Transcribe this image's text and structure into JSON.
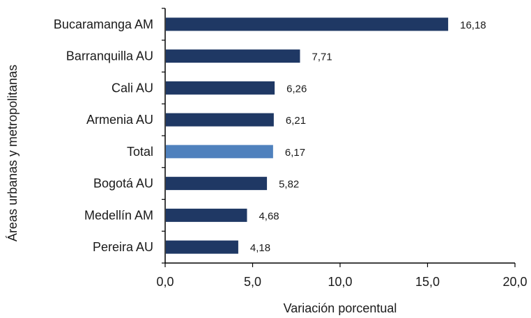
{
  "chart_data": {
    "type": "bar",
    "orientation": "horizontal",
    "title": "",
    "xlabel": "Variación porcentual",
    "ylabel": "Áreas urbanas y metropolitanas",
    "xlim": [
      0,
      20
    ],
    "x_ticks": [
      0,
      5,
      10,
      15,
      20
    ],
    "x_tick_labels": [
      "0,0",
      "5,0",
      "10,0",
      "15,0",
      "20,0"
    ],
    "grid": false,
    "legend": "none",
    "categories": [
      "Bucaramanga AM",
      "Barranquilla AU",
      "Cali AU",
      "Armenia AU",
      "Total",
      "Bogotá AU",
      "Medellín AM",
      "Pereira AU"
    ],
    "values": [
      16.18,
      7.71,
      6.26,
      6.21,
      6.17,
      5.82,
      4.68,
      4.18
    ],
    "value_labels": [
      "16,18",
      "7,71",
      "6,26",
      "6,21",
      "6,17",
      "5,82",
      "4,68",
      "4,18"
    ],
    "highlighted_category": "Total",
    "colors": {
      "bar": "#1f3864",
      "highlight": "#4f81bd",
      "axis": "#000000",
      "text": "#1a1a1a"
    }
  }
}
